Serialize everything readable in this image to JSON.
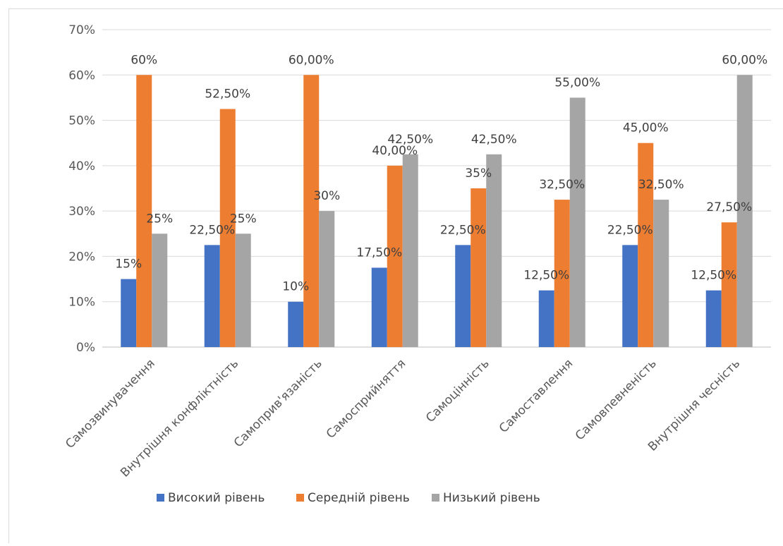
{
  "chart_data": {
    "type": "bar",
    "categories": [
      "Самозвинувачення",
      "Внутрішня конфліктність",
      "Самоприв'язаність",
      "Самосприйняття",
      "Самоцінність",
      "Самоставлення",
      "Самовпевненість",
      "Внутрішня чесність"
    ],
    "series": [
      {
        "name": "Високий рівень",
        "color": "#4472C4",
        "values": [
          15,
          22.5,
          10,
          17.5,
          22.5,
          12.5,
          22.5,
          12.5
        ],
        "labels": [
          "15%",
          "22,50%",
          "10%",
          "17,50%",
          "22,50%",
          "12,50%",
          "22,50%",
          "12,50%"
        ]
      },
      {
        "name": "Середній рівень",
        "color": "#ED7D31",
        "values": [
          60,
          52.5,
          60,
          40,
          35,
          32.5,
          45,
          27.5
        ],
        "labels": [
          "60%",
          "52,50%",
          "60,00%",
          "40,00%",
          "35%",
          "32,50%",
          "45,00%",
          "27,50%"
        ]
      },
      {
        "name": "Низький рівень",
        "color": "#A5A5A5",
        "values": [
          25,
          25,
          30,
          42.5,
          42.5,
          55,
          32.5,
          60
        ],
        "labels": [
          "25%",
          "25%",
          "30%",
          "42,50%",
          "42,50%",
          "55,00%",
          "32,50%",
          "60,00%"
        ]
      }
    ],
    "ylim": [
      0,
      70
    ],
    "yticks": [
      0,
      10,
      20,
      30,
      40,
      50,
      60,
      70
    ],
    "ytick_labels": [
      "0%",
      "10%",
      "20%",
      "30%",
      "40%",
      "50%",
      "60%",
      "70%"
    ],
    "grid": true,
    "legend_position": "bottom"
  }
}
